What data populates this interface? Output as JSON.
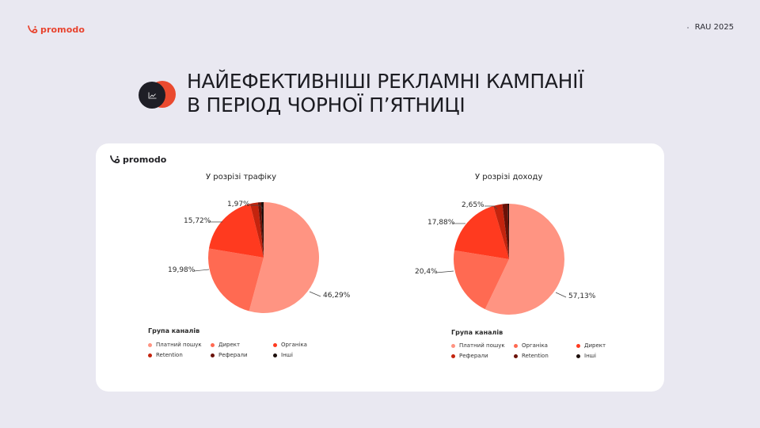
{
  "brand": {
    "name": "promodo"
  },
  "header": {
    "event": "RAU 2025"
  },
  "title": {
    "line1": "НАЙЕФЕКТИВНІШІ РЕКЛАМНІ КАМПАНІЇ",
    "line2": "В ПЕРІОД ЧОРНОЇ П’ЯТНИЦІ"
  },
  "icons": {
    "title_icon": "trend-chart-icon",
    "logo": "promodo-logo-icon"
  },
  "colors": {
    "background": "#e9e8f1",
    "accent": "#ea4a2f",
    "paid_search": "#ff9482",
    "direct": "#ff6a52",
    "organic": "#ff3a1f",
    "retention": "#c4240e",
    "referrals": "#6a1208",
    "other": "#1c0f0c"
  },
  "chart_data": [
    {
      "type": "pie",
      "title": "У розрізі трафіку",
      "legend_title": "Група каналів",
      "legend": [
        "Платний пошук",
        "Директ",
        "Органіка",
        "Retention",
        "Реферали",
        "Інші"
      ],
      "slices": [
        {
          "name": "Платний пошук",
          "value": 46.29,
          "label": "46,29%",
          "color": "#ff9482"
        },
        {
          "name": "Директ",
          "value": 19.98,
          "label": "19,98%",
          "color": "#ff6a52"
        },
        {
          "name": "Органіка",
          "value": 15.72,
          "label": "15,72%",
          "color": "#ff3a1f"
        },
        {
          "name": "Retention",
          "value": 1.97,
          "label": "1,97%",
          "color": "#c4240e"
        },
        {
          "name": "Реферали",
          "value": 0.8,
          "label": "",
          "color": "#6a1208"
        },
        {
          "name": "Інші",
          "value": 0.6,
          "label": "",
          "color": "#1c0f0c"
        }
      ]
    },
    {
      "type": "pie",
      "title": "У розрізі доходу",
      "legend_title": "Група каналів",
      "legend": [
        "Платний пошук",
        "Органіка",
        "Директ",
        "Реферали",
        "Retention",
        "Інші"
      ],
      "slices": [
        {
          "name": "Платний пошук",
          "value": 57.13,
          "label": "57,13%",
          "color": "#ff9482"
        },
        {
          "name": "Органіка",
          "value": 20.4,
          "label": "20,4%",
          "color": "#ff6a52"
        },
        {
          "name": "Директ",
          "value": 17.88,
          "label": "17,88%",
          "color": "#ff3a1f"
        },
        {
          "name": "Реферали",
          "value": 2.65,
          "label": "2,65%",
          "color": "#c4240e"
        },
        {
          "name": "Retention",
          "value": 1.6,
          "label": "",
          "color": "#6a1208"
        },
        {
          "name": "Інші",
          "value": 0.34,
          "label": "",
          "color": "#1c0f0c"
        }
      ]
    }
  ]
}
